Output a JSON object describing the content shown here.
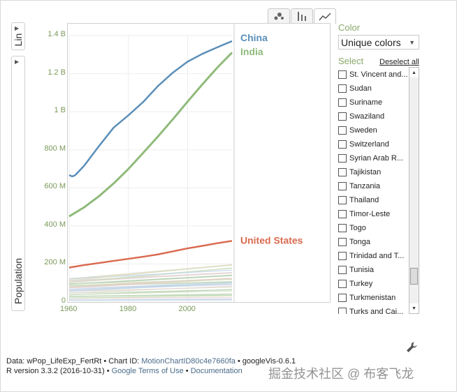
{
  "tabs": [
    {
      "name": "bubble-chart-icon"
    },
    {
      "name": "bar-chart-icon"
    },
    {
      "name": "line-chart-icon"
    }
  ],
  "left_controls": {
    "scale_label": "Lin",
    "y_axis_label": "Population"
  },
  "chart_data": {
    "type": "line",
    "y_ticks": [
      "1.4 B",
      "1.2 B",
      "1 B",
      "800 M",
      "600 M",
      "400 M",
      "200 M",
      "0"
    ],
    "x_ticks": [
      "1960",
      "1980",
      "2000"
    ],
    "xlim": [
      1960,
      2015
    ],
    "ylim": [
      0,
      1400000000
    ],
    "series": [
      {
        "name": "China",
        "color": "#5b8fb9",
        "x": [
          1960,
          1961,
          1962,
          1965,
          1970,
          1975,
          1980,
          1985,
          1990,
          1995,
          2000,
          2005,
          2010,
          2015
        ],
        "values": [
          667000000,
          660000000,
          666000000,
          715000000,
          818000000,
          916000000,
          981000000,
          1051000000,
          1135000000,
          1205000000,
          1263000000,
          1304000000,
          1338000000,
          1371000000
        ]
      },
      {
        "name": "India",
        "color": "#8fba7a",
        "x": [
          1960,
          1965,
          1970,
          1975,
          1980,
          1985,
          1990,
          1995,
          2000,
          2005,
          2010,
          2015
        ],
        "values": [
          450000000,
          497000000,
          555000000,
          623000000,
          699000000,
          784000000,
          870000000,
          960000000,
          1053000000,
          1144000000,
          1231000000,
          1311000000
        ]
      },
      {
        "name": "United States",
        "color": "#d96a4f",
        "x": [
          1960,
          1965,
          1970,
          1975,
          1980,
          1985,
          1990,
          1995,
          2000,
          2005,
          2010,
          2015
        ],
        "values": [
          181000000,
          194000000,
          205000000,
          216000000,
          227000000,
          238000000,
          250000000,
          266000000,
          282000000,
          295000000,
          309000000,
          321000000
        ]
      }
    ]
  },
  "color_panel": {
    "label": "Color",
    "selected": "Unique colors"
  },
  "select_panel": {
    "label": "Select",
    "deselect_all": "Deselect all",
    "items": [
      "St. Vincent and...",
      "Sudan",
      "Suriname",
      "Swaziland",
      "Sweden",
      "Switzerland",
      "Syrian Arab R...",
      "Tajikistan",
      "Tanzania",
      "Thailand",
      "Timor-Leste",
      "Togo",
      "Tonga",
      "Trinidad and T...",
      "Tunisia",
      "Turkey",
      "Turkmenistan",
      "Turks and Cai..."
    ]
  },
  "footer": {
    "line1_prefix": "Data: wPop_LifeExp_FertRt • Chart ID: ",
    "chart_id": "MotionChartID80c4e7660fa",
    "line1_suffix": " • googleVis-0.6.1",
    "line2_prefix": "R version 3.3.2 (2016-10-31) • ",
    "terms_link": "Google Terms of Use",
    "sep": " • ",
    "doc_link": "Documentation"
  },
  "watermark": "掘金技术社区 @ 布客飞龙"
}
